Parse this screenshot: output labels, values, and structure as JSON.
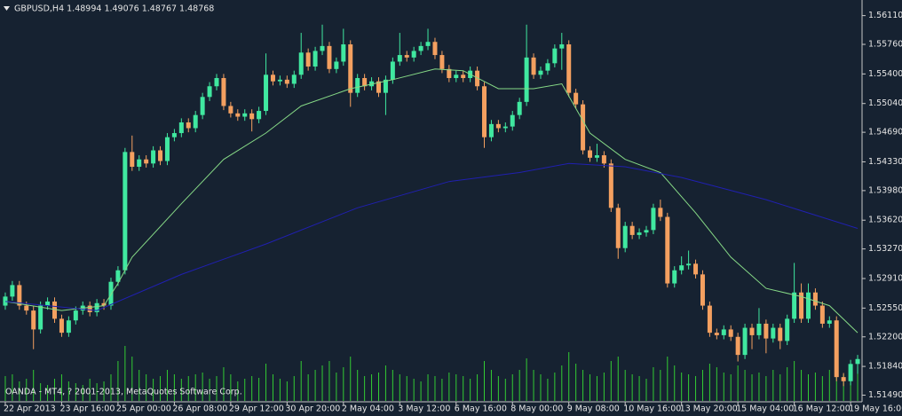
{
  "chart_data": {
    "type": "candlestick",
    "title": "GBPUSD,H4  1.48994 1.49076 1.48767 1.48768",
    "annotation": "OANDA - MT4, ? 2001-2013, MetaQuotes Software Corp.",
    "up_color": "#40e8a0",
    "down_color": "#f4a060",
    "volume_color": "#33cc33",
    "categories": [
      "22 Apr 2013",
      null,
      null,
      null,
      null,
      null,
      null,
      null,
      "23 Apr 16:00",
      null,
      null,
      null,
      null,
      null,
      null,
      null,
      "25 Apr 00:00",
      null,
      null,
      null,
      null,
      null,
      null,
      null,
      "26 Apr 08:00",
      null,
      null,
      null,
      null,
      null,
      null,
      null,
      "29 Apr 12:00",
      null,
      null,
      null,
      null,
      null,
      null,
      null,
      "30 Apr 20:00",
      null,
      null,
      null,
      null,
      null,
      null,
      null,
      "2 May 04:00",
      null,
      null,
      null,
      null,
      null,
      null,
      null,
      "3 May 12:00",
      null,
      null,
      null,
      null,
      null,
      null,
      null,
      "6 May 16:00",
      null,
      null,
      null,
      null,
      null,
      null,
      null,
      "8 May 00:00",
      null,
      null,
      null,
      null,
      null,
      null,
      null,
      "9 May 08:00",
      null,
      null,
      null,
      null,
      null,
      null,
      null,
      "10 May 16:00",
      null,
      null,
      null,
      null,
      null,
      null,
      null,
      "13 May 20:00",
      null,
      null,
      null,
      null,
      null,
      null,
      null,
      "15 May 04:00",
      null,
      null,
      null,
      null,
      null,
      null,
      null,
      "16 May 12:00",
      null,
      null,
      null,
      null,
      null,
      null,
      null,
      "19 May 16:00",
      null
    ],
    "open": [
      1.5258,
      1.5269,
      1.5283,
      1.5258,
      1.5252,
      1.5229,
      1.5258,
      1.5263,
      1.5242,
      1.5225,
      1.524,
      1.5252,
      1.5258,
      1.525,
      1.5261,
      1.5258,
      1.5287,
      1.5301,
      1.5445,
      1.5427,
      1.5436,
      1.5431,
      1.5447,
      1.5434,
      1.5463,
      1.5468,
      1.5481,
      1.5474,
      1.549,
      1.5512,
      1.5525,
      1.5535,
      1.5501,
      1.5492,
      1.5488,
      1.5492,
      1.5485,
      1.5495,
      1.5539,
      1.5531,
      1.5533,
      1.5528,
      1.5539,
      1.5566,
      1.5549,
      1.5568,
      1.5574,
      1.5546,
      1.5555,
      1.5576,
      1.5517,
      1.5535,
      1.5525,
      1.5531,
      1.5517,
      1.5533,
      1.5555,
      1.5563,
      1.556,
      1.5568,
      1.5574,
      1.5579,
      1.5563,
      1.5546,
      1.5535,
      1.5539,
      1.5535,
      1.5544,
      1.5525,
      1.5463,
      1.5479,
      1.5474,
      1.5476,
      1.549,
      1.5506,
      1.556,
      1.5539,
      1.5544,
      1.5553,
      1.5571,
      1.5576,
      1.5517,
      1.5503,
      1.5447,
      1.5438,
      1.5441,
      1.5431,
      1.5377,
      1.5328,
      1.5355,
      1.5344,
      1.5347,
      1.535,
      1.5377,
      1.5366,
      1.5285,
      1.5301,
      1.5307,
      1.5309,
      1.5296,
      1.5258,
      1.5225,
      1.5222,
      1.5229,
      1.522,
      1.5198,
      1.5231,
      1.5222,
      1.5236,
      1.5218,
      1.5231,
      1.5215,
      1.5242,
      1.5274,
      1.5242,
      1.5274,
      1.5258,
      1.5236,
      1.524,
      1.5171,
      1.5166,
      1.5187
    ],
    "high": [
      1.5274,
      1.5288,
      1.5288,
      1.5263,
      1.5257,
      1.5263,
      1.5268,
      1.5268,
      1.5247,
      1.5245,
      1.5257,
      1.5263,
      1.5263,
      1.5266,
      1.5266,
      1.5292,
      1.5306,
      1.545,
      1.5465,
      1.5441,
      1.5441,
      1.5452,
      1.5452,
      1.5468,
      1.5473,
      1.5486,
      1.5486,
      1.5495,
      1.5517,
      1.553,
      1.554,
      1.554,
      1.5506,
      1.5497,
      1.5497,
      1.5497,
      1.55,
      1.5565,
      1.5544,
      1.5538,
      1.5538,
      1.5544,
      1.559,
      1.5571,
      1.5573,
      1.56,
      1.5579,
      1.556,
      1.5595,
      1.5581,
      1.554,
      1.554,
      1.5536,
      1.5536,
      1.5538,
      1.556,
      1.559,
      1.5568,
      1.5573,
      1.5579,
      1.5595,
      1.5584,
      1.5568,
      1.5551,
      1.5544,
      1.5544,
      1.5549,
      1.5549,
      1.553,
      1.5484,
      1.5484,
      1.5481,
      1.5495,
      1.5511,
      1.56,
      1.5565,
      1.5549,
      1.5558,
      1.5576,
      1.559,
      1.5581,
      1.5522,
      1.5508,
      1.5452,
      1.5455,
      1.5446,
      1.5436,
      1.5382,
      1.536,
      1.536,
      1.5352,
      1.5355,
      1.5382,
      1.5387,
      1.5371,
      1.5306,
      1.5318,
      1.5325,
      1.5314,
      1.5301,
      1.5263,
      1.523,
      1.5234,
      1.5234,
      1.5225,
      1.5236,
      1.5236,
      1.5255,
      1.5241,
      1.5236,
      1.5236,
      1.5247,
      1.531,
      1.5285,
      1.5285,
      1.5279,
      1.5263,
      1.5245,
      1.5245,
      1.5176,
      1.5192,
      1.5198
    ],
    "low": [
      1.5253,
      1.5264,
      1.5253,
      1.5247,
      1.5205,
      1.5224,
      1.5253,
      1.5237,
      1.522,
      1.522,
      1.5235,
      1.5247,
      1.5245,
      1.5245,
      1.5253,
      1.5253,
      1.5282,
      1.5296,
      1.5422,
      1.5422,
      1.5426,
      1.5426,
      1.5429,
      1.5429,
      1.5458,
      1.5463,
      1.5469,
      1.5469,
      1.5485,
      1.5507,
      1.552,
      1.5496,
      1.5487,
      1.5483,
      1.5483,
      1.547,
      1.548,
      1.549,
      1.5526,
      1.5526,
      1.5523,
      1.5523,
      1.5534,
      1.5544,
      1.5544,
      1.5563,
      1.5541,
      1.5541,
      1.555,
      1.55,
      1.5512,
      1.552,
      1.552,
      1.5512,
      1.549,
      1.5528,
      1.555,
      1.5555,
      1.5555,
      1.5563,
      1.5569,
      1.5558,
      1.5541,
      1.553,
      1.553,
      1.553,
      1.553,
      1.552,
      1.545,
      1.5458,
      1.5469,
      1.5469,
      1.5471,
      1.5485,
      1.5501,
      1.5534,
      1.5534,
      1.5539,
      1.5548,
      1.5545,
      1.5512,
      1.5498,
      1.5442,
      1.5433,
      1.5433,
      1.5426,
      1.5372,
      1.5315,
      1.5323,
      1.5339,
      1.5339,
      1.5342,
      1.5345,
      1.5361,
      1.528,
      1.528,
      1.5296,
      1.5302,
      1.5291,
      1.5253,
      1.522,
      1.5217,
      1.5217,
      1.5215,
      1.519,
      1.5193,
      1.5205,
      1.5217,
      1.52,
      1.5213,
      1.5205,
      1.521,
      1.5237,
      1.5237,
      1.5237,
      1.5253,
      1.5231,
      1.5231,
      1.5166,
      1.516,
      1.5161,
      1.5175
    ],
    "close": [
      1.5269,
      1.5283,
      1.5258,
      1.5252,
      1.5229,
      1.5258,
      1.5263,
      1.5242,
      1.5225,
      1.524,
      1.5252,
      1.5258,
      1.525,
      1.5261,
      1.5258,
      1.5287,
      1.5301,
      1.5445,
      1.5427,
      1.5436,
      1.5431,
      1.5447,
      1.5434,
      1.5463,
      1.5468,
      1.5481,
      1.5474,
      1.549,
      1.5512,
      1.5525,
      1.5535,
      1.5501,
      1.5492,
      1.5488,
      1.5492,
      1.5485,
      1.5495,
      1.5539,
      1.5531,
      1.5533,
      1.5528,
      1.5539,
      1.5566,
      1.5549,
      1.5568,
      1.5574,
      1.5546,
      1.5555,
      1.5576,
      1.5517,
      1.5535,
      1.5525,
      1.5531,
      1.5517,
      1.5533,
      1.5555,
      1.5563,
      1.556,
      1.5568,
      1.5574,
      1.5579,
      1.5563,
      1.5546,
      1.5535,
      1.5539,
      1.5535,
      1.5544,
      1.5525,
      1.5463,
      1.5479,
      1.5474,
      1.5476,
      1.549,
      1.5506,
      1.556,
      1.5539,
      1.5544,
      1.5553,
      1.5571,
      1.5576,
      1.5517,
      1.5503,
      1.5447,
      1.5438,
      1.5441,
      1.5431,
      1.5377,
      1.5328,
      1.5355,
      1.5344,
      1.5347,
      1.535,
      1.5377,
      1.5366,
      1.5285,
      1.5301,
      1.5307,
      1.5309,
      1.5296,
      1.5258,
      1.5225,
      1.5222,
      1.5229,
      1.522,
      1.5198,
      1.5231,
      1.5222,
      1.5236,
      1.5218,
      1.5231,
      1.5215,
      1.5242,
      1.5274,
      1.5242,
      1.5274,
      1.5258,
      1.5236,
      1.524,
      1.5171,
      1.5166,
      1.5187,
      1.5193
    ],
    "volume": [
      28,
      30,
      22,
      25,
      35,
      20,
      18,
      25,
      30,
      22,
      20,
      18,
      25,
      20,
      22,
      30,
      45,
      62,
      50,
      35,
      30,
      25,
      28,
      35,
      30,
      25,
      28,
      30,
      32,
      25,
      28,
      38,
      30,
      22,
      25,
      28,
      26,
      42,
      30,
      25,
      22,
      28,
      45,
      30,
      35,
      40,
      45,
      32,
      38,
      50,
      35,
      28,
      30,
      32,
      40,
      35,
      30,
      28,
      25,
      22,
      30,
      28,
      25,
      32,
      30,
      28,
      25,
      30,
      45,
      35,
      28,
      25,
      30,
      35,
      48,
      35,
      30,
      25,
      32,
      40,
      55,
      42,
      35,
      30,
      28,
      32,
      45,
      50,
      35,
      30,
      28,
      25,
      38,
      35,
      50,
      40,
      32,
      30,
      28,
      35,
      42,
      38,
      32,
      30,
      40,
      35,
      30,
      32,
      28,
      35,
      30,
      38,
      45,
      35,
      30,
      32,
      28,
      35,
      40,
      30,
      35,
      38
    ],
    "moving_averages": [
      {
        "color": "#86d986",
        "x": [
          0,
          8,
          14,
          16,
          18,
          25,
          31,
          37,
          42,
          49,
          55,
          61,
          65,
          70,
          75,
          79,
          83,
          88,
          93,
          98,
          103,
          108,
          113,
          117,
          121
        ],
        "values": [
          1.5263,
          1.5252,
          1.5258,
          1.5285,
          1.5317,
          1.5382,
          1.5436,
          1.5468,
          1.5501,
          1.5522,
          1.5533,
          1.5546,
          1.5544,
          1.5522,
          1.5522,
          1.5528,
          1.5468,
          1.5436,
          1.542,
          1.5371,
          1.5317,
          1.5279,
          1.5269,
          1.5258,
          1.5225
        ]
      },
      {
        "color": "#2020b0",
        "x": [
          0,
          13,
          25,
          37,
          50,
          63,
          73,
          80,
          88,
          96,
          108,
          121
        ],
        "values": [
          1.5263,
          1.5252,
          1.5296,
          1.5333,
          1.5377,
          1.5409,
          1.542,
          1.5431,
          1.5427,
          1.5414,
          1.5387,
          1.5352
        ]
      }
    ],
    "ylim": [
      1.5142,
      1.563
    ],
    "yticks": [
      {
        "value": 1.5611,
        "label": "1.56110"
      },
      {
        "value": 1.5576,
        "label": "1.55760"
      },
      {
        "value": 1.554,
        "label": "1.55400"
      },
      {
        "value": 1.5504,
        "label": "1.55040"
      },
      {
        "value": 1.5469,
        "label": "1.54690"
      },
      {
        "value": 1.5433,
        "label": "1.54330"
      },
      {
        "value": 1.5398,
        "label": "1.53980"
      },
      {
        "value": 1.5362,
        "label": "1.53620"
      },
      {
        "value": 1.5327,
        "label": "1.53270"
      },
      {
        "value": 1.5291,
        "label": "1.52910"
      },
      {
        "value": 1.5255,
        "label": "1.52550"
      },
      {
        "value": 1.522,
        "label": "1.52200"
      },
      {
        "value": 1.5184,
        "label": "1.51840"
      },
      {
        "value": 1.5149,
        "label": "1.51490"
      }
    ]
  }
}
